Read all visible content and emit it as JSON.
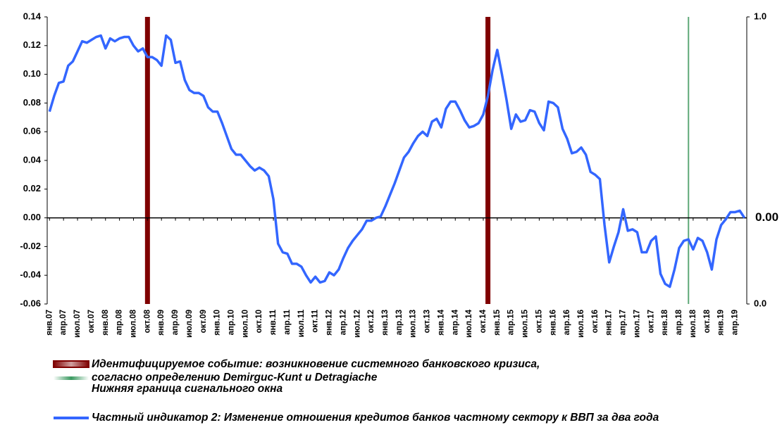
{
  "chart_data": {
    "type": "line",
    "categories": [
      "янв.07",
      null,
      null,
      "апр.07",
      null,
      null,
      "июл.07",
      null,
      null,
      "окт.07",
      null,
      null,
      "янв.08",
      null,
      null,
      "апр.08",
      null,
      null,
      "июл.08",
      null,
      null,
      "окт.08",
      null,
      null,
      "янв.09",
      null,
      null,
      "апр.09",
      null,
      null,
      "июл.09",
      null,
      null,
      "окт.09",
      null,
      null,
      "янв.10",
      null,
      null,
      "апр.10",
      null,
      null,
      "июл.10",
      null,
      null,
      "окт.10",
      null,
      null,
      "янв.11",
      null,
      null,
      "апр.11",
      null,
      null,
      "июл.11",
      null,
      null,
      "окт.11",
      null,
      null,
      "янв.12",
      null,
      null,
      "апр.12",
      null,
      null,
      "июл.12",
      null,
      null,
      "окт.12",
      null,
      null,
      "янв.13",
      null,
      null,
      "апр.13",
      null,
      null,
      "июл.13",
      null,
      null,
      "окт.13",
      null,
      null,
      "янв.14",
      null,
      null,
      "апр.14",
      null,
      null,
      "июл.14",
      null,
      null,
      "окт.14",
      null,
      null,
      "янв.15",
      null,
      null,
      "апр.15",
      null,
      null,
      "июл.15",
      null,
      null,
      "окт.15",
      null,
      null,
      "янв.16",
      null,
      null,
      "апр.16",
      null,
      null,
      "июл.16",
      null,
      null,
      "окт.16",
      null,
      null,
      "янв.17",
      null,
      null,
      "апр.17",
      null,
      null,
      "июл.17",
      null,
      null,
      "окт.17",
      null,
      null,
      "янв.18",
      null,
      null,
      "апр.18",
      null,
      null,
      "июл.18",
      null,
      null,
      "окт.18",
      null,
      null,
      "янв.19",
      null,
      null,
      "апр.19",
      null,
      null
    ],
    "series": [
      {
        "name": "Идентифицируемое событие: возникновение системного банковского кризиса, согласно определению Demirguc-Kunt и Detragiache",
        "type": "bar",
        "axis": "y2",
        "color": "#7f0000",
        "values": [
          0,
          0,
          0,
          0,
          0,
          0,
          0,
          0,
          0,
          0,
          0,
          0,
          0,
          0,
          0,
          0,
          0,
          0,
          0,
          0,
          0,
          1,
          0,
          0,
          0,
          0,
          0,
          0,
          0,
          0,
          0,
          0,
          0,
          0,
          0,
          0,
          0,
          0,
          0,
          0,
          0,
          0,
          0,
          0,
          0,
          0,
          0,
          0,
          0,
          0,
          0,
          0,
          0,
          0,
          0,
          0,
          0,
          0,
          0,
          0,
          0,
          0,
          0,
          0,
          0,
          0,
          0,
          0,
          0,
          0,
          0,
          0,
          0,
          0,
          0,
          0,
          0,
          0,
          0,
          0,
          0,
          0,
          0,
          0,
          0,
          0,
          0,
          0,
          0,
          0,
          0,
          0,
          0,
          0,
          1,
          0,
          0,
          0,
          0,
          0,
          0,
          0,
          0,
          0,
          0,
          0,
          0,
          0,
          0,
          0,
          0,
          0,
          0,
          0,
          0,
          0,
          0,
          0,
          0,
          0,
          0,
          0,
          0,
          0,
          0,
          0,
          0,
          0,
          0,
          0,
          0,
          0,
          0,
          0,
          0,
          0,
          0,
          0,
          0,
          0,
          0,
          0,
          0,
          0,
          0,
          0,
          0,
          0,
          0,
          0
        ]
      },
      {
        "name": "Нижняя граница сигнального окна",
        "type": "bar",
        "axis": "y2",
        "color": "#5fa878",
        "values": [
          0,
          0,
          0,
          0,
          0,
          0,
          0,
          0,
          0,
          0,
          0,
          0,
          0,
          0,
          0,
          0,
          0,
          0,
          0,
          0,
          0,
          0,
          0,
          0,
          0,
          0,
          0,
          0,
          0,
          0,
          0,
          0,
          0,
          0,
          0,
          0,
          0,
          0,
          0,
          0,
          0,
          0,
          0,
          0,
          0,
          0,
          0,
          0,
          0,
          0,
          0,
          0,
          0,
          0,
          0,
          0,
          0,
          0,
          0,
          0,
          0,
          0,
          0,
          0,
          0,
          0,
          0,
          0,
          0,
          0,
          0,
          0,
          0,
          0,
          0,
          0,
          0,
          0,
          0,
          0,
          0,
          0,
          0,
          0,
          0,
          0,
          0,
          0,
          0,
          0,
          0,
          0,
          0,
          0,
          0,
          0,
          0,
          0,
          0,
          0,
          0,
          0,
          0,
          0,
          0,
          0,
          0,
          0,
          0,
          0,
          0,
          0,
          0,
          0,
          0,
          0,
          0,
          0,
          0,
          0,
          0,
          0,
          0,
          0,
          0,
          0,
          0,
          0,
          0,
          0,
          0,
          0,
          0,
          0,
          0,
          0,
          0,
          1,
          0,
          0,
          0,
          0,
          0,
          0,
          0,
          0,
          0,
          0,
          0,
          0
        ]
      },
      {
        "name": "Частный индикатор 2: Изменение отношения кредитов банков частному сектору к ВВП за два года",
        "type": "line",
        "color": "#3366ff",
        "values": [
          0.074,
          0.085,
          0.094,
          0.095,
          0.106,
          0.109,
          0.116,
          0.123,
          0.122,
          0.124,
          0.126,
          0.127,
          0.118,
          0.125,
          0.123,
          0.125,
          0.126,
          0.126,
          0.12,
          0.116,
          0.118,
          0.112,
          0.112,
          0.11,
          0.106,
          0.127,
          0.124,
          0.108,
          0.109,
          0.096,
          0.089,
          0.087,
          0.087,
          0.085,
          0.077,
          0.074,
          0.074,
          0.066,
          0.057,
          0.048,
          0.044,
          0.044,
          0.04,
          0.036,
          0.033,
          0.035,
          0.033,
          0.029,
          0.013,
          -0.018,
          -0.024,
          -0.025,
          -0.032,
          -0.032,
          -0.034,
          -0.04,
          -0.045,
          -0.041,
          -0.045,
          -0.044,
          -0.038,
          -0.04,
          -0.036,
          -0.028,
          -0.021,
          -0.016,
          -0.012,
          -0.008,
          -0.002,
          -0.002,
          0.0,
          0.001,
          0.008,
          0.016,
          0.024,
          0.033,
          0.042,
          0.046,
          0.052,
          0.057,
          0.06,
          0.057,
          0.067,
          0.069,
          0.063,
          0.076,
          0.081,
          0.081,
          0.075,
          0.068,
          0.063,
          0.064,
          0.066,
          0.072,
          0.085,
          0.103,
          0.117,
          0.1,
          0.082,
          0.062,
          0.072,
          0.067,
          0.068,
          0.075,
          0.074,
          0.066,
          0.061,
          0.081,
          0.08,
          0.077,
          0.062,
          0.055,
          0.045,
          0.046,
          0.049,
          0.044,
          0.032,
          0.03,
          0.027,
          -0.005,
          -0.031,
          -0.02,
          -0.01,
          0.006,
          -0.009,
          -0.008,
          -0.01,
          -0.024,
          -0.024,
          -0.016,
          -0.013,
          -0.039,
          -0.046,
          -0.048,
          -0.036,
          -0.021,
          -0.016,
          -0.015,
          -0.022,
          -0.014,
          -0.016,
          -0.024,
          -0.036,
          -0.015,
          -0.005,
          -0.001,
          0.004,
          0.004,
          0.005,
          0.0
        ],
        "value_labels": [
          null,
          null,
          null,
          null,
          null,
          null,
          null,
          null,
          null,
          null,
          null,
          null,
          null,
          null,
          null,
          null,
          null,
          null,
          null,
          null,
          null,
          null,
          null,
          null,
          null,
          null,
          null,
          null,
          null,
          null,
          null,
          null,
          null,
          null,
          null,
          null,
          null,
          null,
          null,
          null,
          null,
          null,
          null,
          null,
          null,
          null,
          null,
          null,
          null,
          null,
          null,
          null,
          null,
          null,
          null,
          null,
          null,
          null,
          null,
          null,
          null,
          null,
          null,
          null,
          null,
          null,
          null,
          null,
          null,
          null,
          null,
          null,
          null,
          null,
          null,
          null,
          null,
          null,
          null,
          null,
          null,
          null,
          null,
          null,
          null,
          null,
          null,
          null,
          null,
          null,
          null,
          null,
          null,
          null,
          null,
          null,
          null,
          null,
          null,
          null,
          null,
          null,
          null,
          null,
          null,
          null,
          null,
          null,
          null,
          null,
          null,
          null,
          null,
          null,
          null,
          null,
          null,
          null,
          null,
          null,
          null,
          null,
          null,
          null,
          null,
          null,
          null,
          null,
          null,
          null,
          null,
          null,
          null,
          null,
          null,
          null,
          null,
          null,
          null,
          null,
          null,
          null,
          null,
          null,
          null,
          null,
          null,
          null,
          null,
          "0.00"
        ]
      }
    ],
    "ylim": [
      -0.06,
      0.14
    ],
    "yticks": [
      {
        "value": -0.06,
        "label": "-0.06"
      },
      {
        "value": -0.04,
        "label": "-0.04"
      },
      {
        "value": -0.02,
        "label": "-0.02"
      },
      {
        "value": 0,
        "label": "0.00"
      },
      {
        "value": 0.02,
        "label": "0.02"
      },
      {
        "value": 0.04,
        "label": "0.04"
      },
      {
        "value": 0.06,
        "label": "0.06"
      },
      {
        "value": 0.08,
        "label": "0.08"
      },
      {
        "value": 0.1,
        "label": "0.10"
      },
      {
        "value": 0.12,
        "label": "0.12"
      },
      {
        "value": 0.14,
        "label": "0.14"
      }
    ],
    "y2lim": [
      0,
      1
    ],
    "y2ticks": [
      {
        "value": 0,
        "label": "0.0"
      },
      {
        "value": 1,
        "label": "1.0"
      }
    ],
    "grid": false,
    "legend": "bottom"
  }
}
